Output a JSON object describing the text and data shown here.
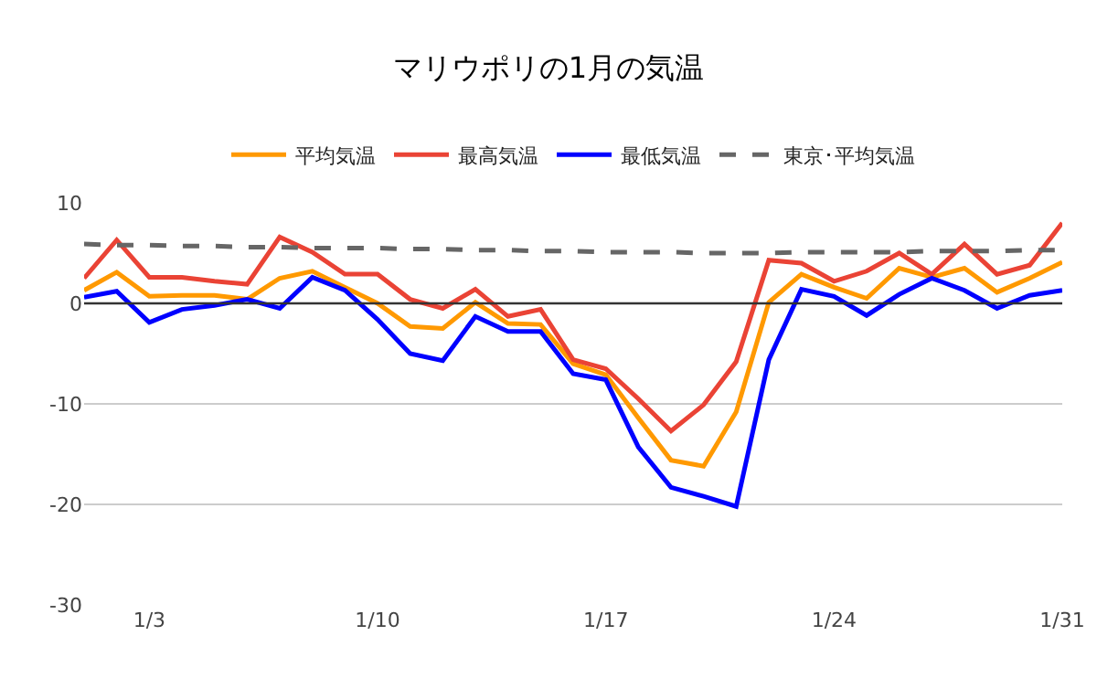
{
  "chart_data": {
    "type": "line",
    "title": "マリウポリの1月の気温",
    "categories": [
      null,
      null,
      "1/3",
      null,
      null,
      null,
      null,
      null,
      null,
      "1/10",
      null,
      null,
      null,
      null,
      null,
      null,
      "1/17",
      null,
      null,
      null,
      null,
      null,
      null,
      "1/24",
      null,
      null,
      null,
      null,
      null,
      null,
      "1/31"
    ],
    "series": [
      {
        "name": "平均気温",
        "color": "#ff9900",
        "values": [
          1.3,
          3.1,
          0.7,
          0.8,
          0.8,
          0.4,
          2.5,
          3.2,
          1.6,
          0,
          -2.3,
          -2.5,
          0.1,
          -2.0,
          -2.1,
          -6.0,
          -7.1,
          -11.4,
          -15.6,
          -16.2,
          -10.8,
          0.1,
          2.9,
          1.6,
          0.5,
          3.5,
          2.6,
          3.5,
          1.1,
          2.5,
          4.1
        ]
      },
      {
        "name": "最高気温",
        "color": "#ea4335",
        "values": [
          2.5,
          6.3,
          2.6,
          2.6,
          2.2,
          1.9,
          6.6,
          5.1,
          2.9,
          2.9,
          0.4,
          -0.5,
          1.4,
          -1.3,
          -0.6,
          -5.6,
          -6.5,
          -9.5,
          -12.7,
          -10.1,
          -5.8,
          4.3,
          4.0,
          2.2,
          3.2,
          5.0,
          2.9,
          5.9,
          2.9,
          3.8,
          8.0
        ]
      },
      {
        "name": "最低気温",
        "color": "#0000ff",
        "values": [
          0.6,
          1.2,
          -1.9,
          -0.6,
          -0.2,
          0.4,
          -0.5,
          2.6,
          1.3,
          -1.6,
          -5.0,
          -5.7,
          -1.3,
          -2.8,
          -2.8,
          -7.0,
          -7.6,
          -14.3,
          -18.3,
          -19.2,
          -20.2,
          -5.6,
          1.4,
          0.7,
          -1.2,
          0.9,
          2.5,
          1.3,
          -0.5,
          0.8,
          1.3
        ]
      },
      {
        "name": "東京･平均気温",
        "color": "#666666",
        "line_style": "dashed",
        "values": [
          5.9,
          5.8,
          5.8,
          5.7,
          5.7,
          5.6,
          5.6,
          5.5,
          5.5,
          5.5,
          5.4,
          5.4,
          5.3,
          5.3,
          5.2,
          5.2,
          5.1,
          5.1,
          5.1,
          5.0,
          5.0,
          5.0,
          5.1,
          5.1,
          5.1,
          5.1,
          5.2,
          5.2,
          5.2,
          5.3,
          5.3
        ]
      }
    ],
    "ylim": [
      -30,
      10
    ],
    "yticks": [
      -30,
      -20,
      -10,
      0,
      10
    ],
    "ref_lines": [
      {
        "axis": "y",
        "value": 0,
        "color": "#333333"
      }
    ],
    "grid": "y",
    "legend": "top",
    "line_style": "solid"
  }
}
